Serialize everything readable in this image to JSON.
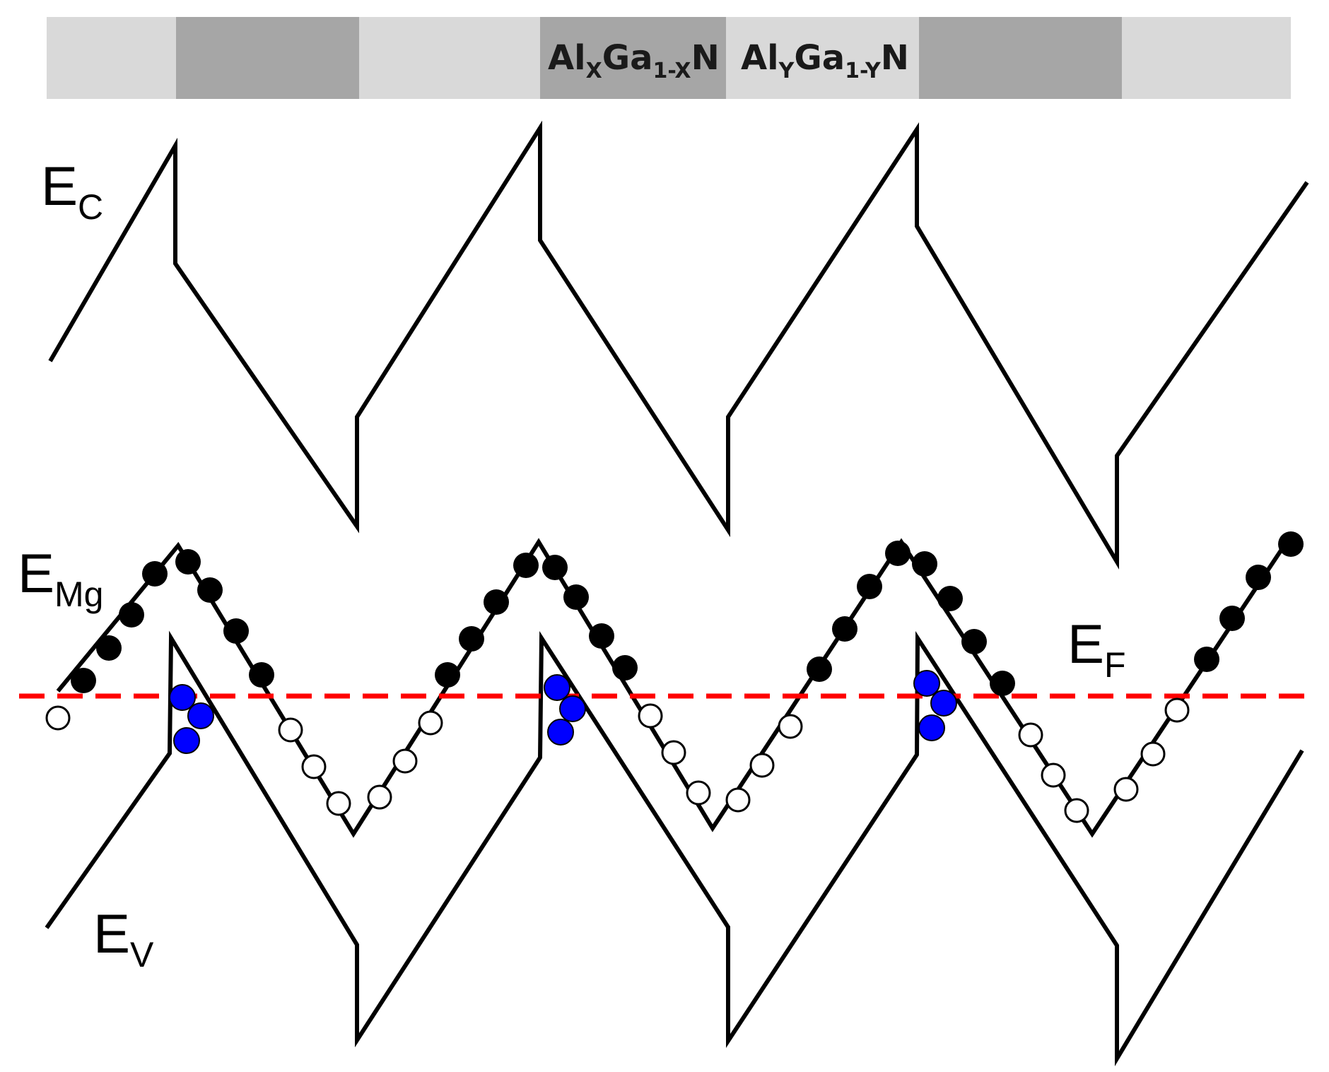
{
  "header_bar": {
    "layer_labels": [
      {
        "main": "Al",
        "sub": "X",
        "rest": "Ga",
        "sub2": "1-X",
        "end": "N"
      },
      {
        "main": "Al",
        "sub": "Y",
        "rest": "Ga",
        "sub2": "1-Y",
        "end": "N"
      }
    ],
    "colors": {
      "light": "#d9d9d9",
      "dark": "#a6a6a6"
    }
  },
  "band_labels": {
    "ec": {
      "main": "E",
      "sub": "C"
    },
    "emg": {
      "main": "E",
      "sub": "Mg"
    },
    "ef": {
      "main": "E",
      "sub": "F"
    },
    "ev": {
      "main": "E",
      "sub": "V"
    }
  },
  "colors": {
    "band_line": "#000000",
    "fermi_line": "#ff0000",
    "ionized_acceptor": "#000000",
    "neutral_acceptor": "#ffffff",
    "hole": "#0000ff"
  }
}
